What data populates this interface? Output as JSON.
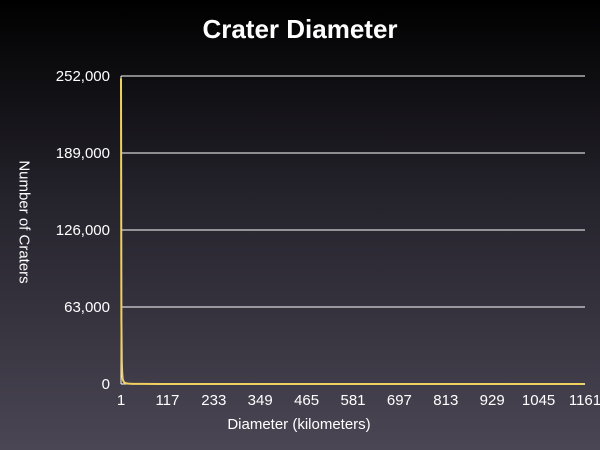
{
  "chart_data": {
    "type": "line",
    "title": "Crater Diameter",
    "xlabel": "Diameter (kilometers)",
    "ylabel": "Number of Craters",
    "xlim": [
      1,
      1161
    ],
    "ylim": [
      0,
      252000
    ],
    "x_ticks": [
      "1",
      "117",
      "233",
      "349",
      "465",
      "581",
      "697",
      "813",
      "929",
      "1045",
      "1161"
    ],
    "y_ticks": [
      {
        "value": 0,
        "label": "0"
      },
      {
        "value": 63000,
        "label": "63,000"
      },
      {
        "value": 126000,
        "label": "126,000"
      },
      {
        "value": 189000,
        "label": "189,000"
      },
      {
        "value": 252000,
        "label": "252,000"
      }
    ],
    "grid": true,
    "series": [
      {
        "color": "#f0d060",
        "x": [
          1,
          2,
          3,
          4,
          5,
          6,
          8,
          10,
          15,
          20,
          30,
          50,
          100,
          200,
          400,
          600,
          800,
          1000,
          1161
        ],
        "y": [
          250000,
          52000,
          18000,
          9000,
          5000,
          3200,
          1800,
          1100,
          500,
          300,
          150,
          60,
          15,
          4,
          1,
          1,
          0,
          0,
          0
        ]
      }
    ]
  }
}
